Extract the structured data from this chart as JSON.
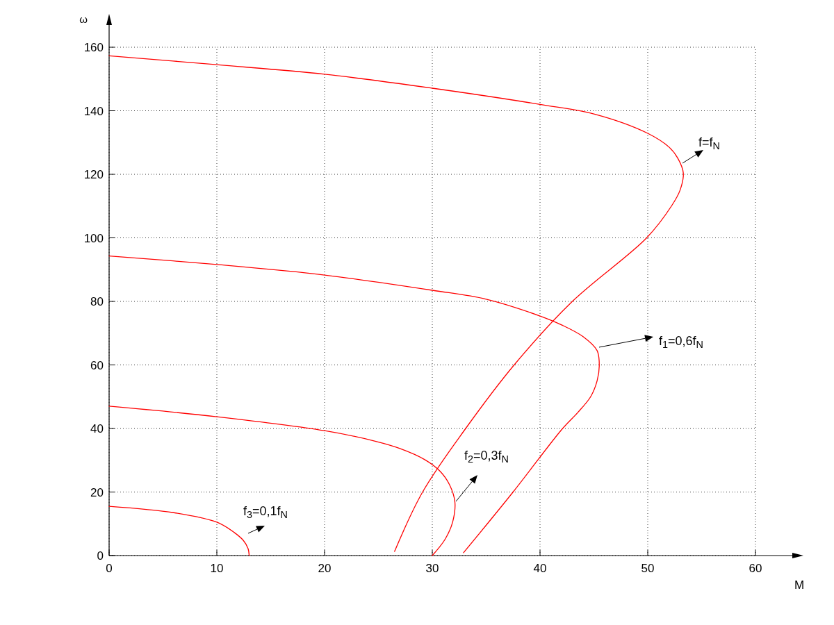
{
  "chart_data": {
    "type": "line",
    "xlabel": "M",
    "ylabel": "ω",
    "xlim": [
      0,
      60
    ],
    "ylim": [
      0,
      160
    ],
    "xticks": [
      0,
      10,
      20,
      30,
      40,
      50,
      60
    ],
    "yticks": [
      0,
      20,
      40,
      60,
      80,
      100,
      120,
      140,
      160
    ],
    "grid": true,
    "marker": "none",
    "line_style": "solid",
    "series": [
      {
        "color": "#ff0000",
        "x": [
          0,
          10,
          20,
          30,
          40,
          45,
          50,
          52,
          52.8,
          53.3,
          53.0,
          52.2,
          49.9,
          43.0,
          37.6,
          33.1,
          29.1,
          26.5
        ],
        "values": [
          157.3,
          154.5,
          151.5,
          147.1,
          142,
          139,
          132.9,
          128.5,
          125,
          120.4,
          115,
          110,
          100,
          80,
          60,
          40,
          20,
          1.3
        ]
      },
      {
        "color": "#ff0000",
        "x": [
          0,
          10,
          20,
          30,
          35,
          40,
          42,
          44,
          45.3,
          45.5,
          45.3,
          44.7,
          43.5,
          42.1,
          37.5,
          32.9
        ],
        "values": [
          94.3,
          91.6,
          88.3,
          83.5,
          80.7,
          75.4,
          72.6,
          68.9,
          64.5,
          59.7,
          55,
          50,
          45,
          40,
          20,
          0.9
        ]
      },
      {
        "color": "#ff0000",
        "x": [
          0,
          10,
          20,
          24.7,
          27,
          29.3,
          30.7,
          31.6,
          32.1,
          31.9,
          31.2,
          30.0
        ],
        "values": [
          47,
          43.7,
          39.3,
          36.0,
          33.7,
          30.2,
          26.6,
          22.3,
          16.8,
          10.7,
          5.2,
          0
        ]
      },
      {
        "color": "#ff0000",
        "x": [
          0,
          6,
          10,
          11.6,
          12.45,
          12.9,
          13.0
        ],
        "values": [
          15.5,
          13.5,
          10.5,
          7.3,
          4.8,
          2.2,
          0
        ]
      }
    ],
    "annotations": [
      "f=f$_{N}$",
      "f$_{1}$=0,6f$_{N}$",
      "f$_{2}$=0,3f$_{N}$",
      "f$_{3}$=0,1f$_{N}$"
    ]
  }
}
